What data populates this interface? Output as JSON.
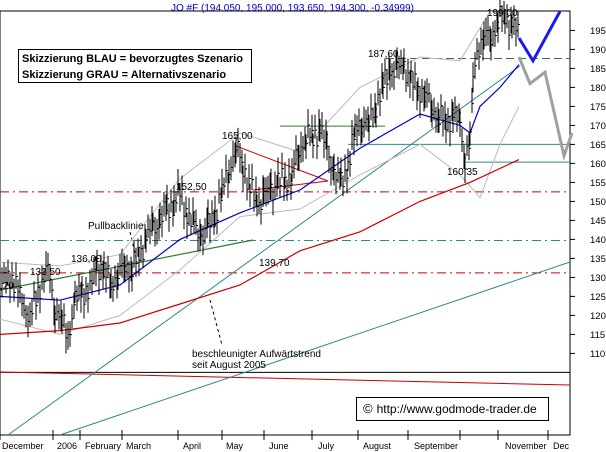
{
  "header": {
    "symbol_text": "JO #F (194.050, 195.000, 193.650, 194.300, -0.34999)"
  },
  "legend": {
    "line1": "Skizzierung BLAU = bevorzugtes Szenario",
    "line2": "Skizzierung GRAU = Alternativszenario"
  },
  "source": {
    "copyright_symbol": "©",
    "url": "http://www.godmode-trader.de"
  },
  "chart_data": {
    "type": "candlestick",
    "title": "JO #F (194.050, 195.000, 193.650, 194.300, -0.34999)",
    "ylim": [
      103,
      200
    ],
    "y_ticks": [
      110,
      115,
      120,
      125,
      130,
      135,
      140,
      145,
      150,
      155,
      160,
      165,
      170,
      175,
      180,
      185,
      190,
      195
    ],
    "grid": false,
    "x_axis_labels": [
      "December",
      "2006",
      "February",
      "March",
      "April",
      "May",
      "June",
      "July",
      "August",
      "September",
      "November",
      "Dec"
    ],
    "annotations": [
      {
        "text": "132,50",
        "value": 132.5
      },
      {
        "text": "136,00",
        "value": 136.0
      },
      {
        "text": "152,50",
        "value": 152.5
      },
      {
        "text": "165,00",
        "value": 165.0
      },
      {
        "text": "187,60",
        "value": 187.6
      },
      {
        "text": "199,00",
        "value": 199.0
      },
      {
        "text": "160,35",
        "value": 160.35
      },
      {
        "text": "139,70",
        "value": 139.7
      },
      {
        "text": "Pullbacklinie"
      },
      {
        "text": "beschleunigter Aufwärtstrend"
      },
      {
        "text": "seit August 2005"
      },
      {
        "text": ",20"
      }
    ],
    "price_path": [
      [
        0,
        127
      ],
      [
        10,
        131
      ],
      [
        20,
        125
      ],
      [
        30,
        119
      ],
      [
        40,
        128
      ],
      [
        48,
        132
      ],
      [
        55,
        122
      ],
      [
        62,
        118
      ],
      [
        68,
        115
      ],
      [
        75,
        123
      ],
      [
        82,
        127
      ],
      [
        90,
        126
      ],
      [
        97,
        134
      ],
      [
        104,
        131
      ],
      [
        111,
        129
      ],
      [
        118,
        130
      ],
      [
        125,
        134
      ],
      [
        132,
        132
      ],
      [
        139,
        136
      ],
      [
        146,
        140
      ],
      [
        153,
        143
      ],
      [
        160,
        145
      ],
      [
        167,
        148
      ],
      [
        174,
        150
      ],
      [
        180,
        152
      ],
      [
        187,
        147
      ],
      [
        194,
        143
      ],
      [
        201,
        141
      ],
      [
        208,
        143
      ],
      [
        215,
        147
      ],
      [
        222,
        152
      ],
      [
        229,
        159
      ],
      [
        236,
        164
      ],
      [
        243,
        160
      ],
      [
        250,
        153
      ],
      [
        257,
        150
      ],
      [
        264,
        151
      ],
      [
        271,
        153
      ],
      [
        278,
        155
      ],
      [
        285,
        155
      ],
      [
        292,
        158
      ],
      [
        299,
        163
      ],
      [
        306,
        168
      ],
      [
        313,
        166
      ],
      [
        320,
        170
      ],
      [
        327,
        163
      ],
      [
        334,
        158
      ],
      [
        341,
        154
      ],
      [
        348,
        160
      ],
      [
        355,
        168
      ],
      [
        362,
        172
      ],
      [
        369,
        170
      ],
      [
        376,
        176
      ],
      [
        383,
        180
      ],
      [
        390,
        185
      ],
      [
        397,
        184
      ],
      [
        404,
        186
      ],
      [
        411,
        181
      ],
      [
        418,
        180
      ],
      [
        425,
        178
      ],
      [
        432,
        175
      ],
      [
        439,
        172
      ],
      [
        446,
        171
      ],
      [
        453,
        173
      ],
      [
        460,
        170
      ],
      [
        465,
        162
      ],
      [
        470,
        165
      ],
      [
        473,
        182
      ],
      [
        477,
        190
      ],
      [
        484,
        193
      ],
      [
        491,
        194
      ],
      [
        498,
        197
      ],
      [
        505,
        199
      ],
      [
        512,
        196
      ],
      [
        519,
        194
      ]
    ],
    "series": [
      {
        "color": "#0000cc",
        "points": [
          [
            0,
            125
          ],
          [
            60,
            124
          ],
          [
            120,
            128
          ],
          [
            180,
            140
          ],
          [
            240,
            147
          ],
          [
            300,
            153
          ],
          [
            360,
            164
          ],
          [
            420,
            173
          ],
          [
            460,
            170
          ],
          [
            470,
            168
          ],
          [
            480,
            175
          ],
          [
            500,
            180
          ],
          [
            519,
            186
          ]
        ]
      },
      {
        "color": "#cc0000",
        "points": [
          [
            0,
            115
          ],
          [
            60,
            116
          ],
          [
            120,
            118
          ],
          [
            180,
            123
          ],
          [
            240,
            128
          ],
          [
            300,
            137
          ],
          [
            360,
            142
          ],
          [
            420,
            150
          ],
          [
            470,
            155
          ],
          [
            519,
            161
          ]
        ]
      },
      {
        "color": "#bbbbbb",
        "points": [
          [
            0,
            134
          ],
          [
            60,
            133
          ],
          [
            120,
            136
          ],
          [
            180,
            156
          ],
          [
            240,
            168
          ],
          [
            300,
            163
          ],
          [
            360,
            180
          ],
          [
            420,
            188
          ],
          [
            460,
            187
          ],
          [
            490,
            200
          ],
          [
            519,
            199
          ]
        ]
      },
      {
        "color": "#bbbbbb",
        "points": [
          [
            0,
            119
          ],
          [
            60,
            115
          ],
          [
            120,
            120
          ],
          [
            180,
            132
          ],
          [
            240,
            146
          ],
          [
            300,
            148
          ],
          [
            360,
            157
          ],
          [
            420,
            165
          ],
          [
            460,
            157
          ],
          [
            480,
            151
          ],
          [
            500,
            165
          ],
          [
            519,
            175
          ]
        ]
      }
    ],
    "scenario_blue": {
      "color": "#1a1ae6",
      "points": [
        [
          519,
          193
        ],
        [
          533,
          187
        ],
        [
          560,
          200
        ]
      ]
    },
    "scenario_gray": {
      "color": "#a0a0a0",
      "points": [
        [
          519,
          188
        ],
        [
          530,
          181
        ],
        [
          545,
          184
        ],
        [
          564,
          162
        ],
        [
          572,
          168
        ]
      ]
    },
    "horizontal_levels": [
      {
        "value": 187.6,
        "color": "#2e7d2e",
        "style": "dashed"
      },
      {
        "value": 165.0,
        "color": "#2e8a8a",
        "style": "solid"
      },
      {
        "value": 160.35,
        "color": "#2e8a8a",
        "style": "solid"
      },
      {
        "value": 152.5,
        "color": "#cc0000",
        "style": "dashdot"
      },
      {
        "value": 139.7,
        "color": "#2e8a8a",
        "style": "dashdot"
      },
      {
        "value": 131.2,
        "color": "#cc0000",
        "style": "dashdot"
      },
      {
        "value": 105.0,
        "color": "#000000",
        "style": "solid"
      }
    ],
    "short_levels": [
      {
        "value": 169.8,
        "x1": 280,
        "x2": 385,
        "color": "#2e7d2e"
      }
    ]
  }
}
